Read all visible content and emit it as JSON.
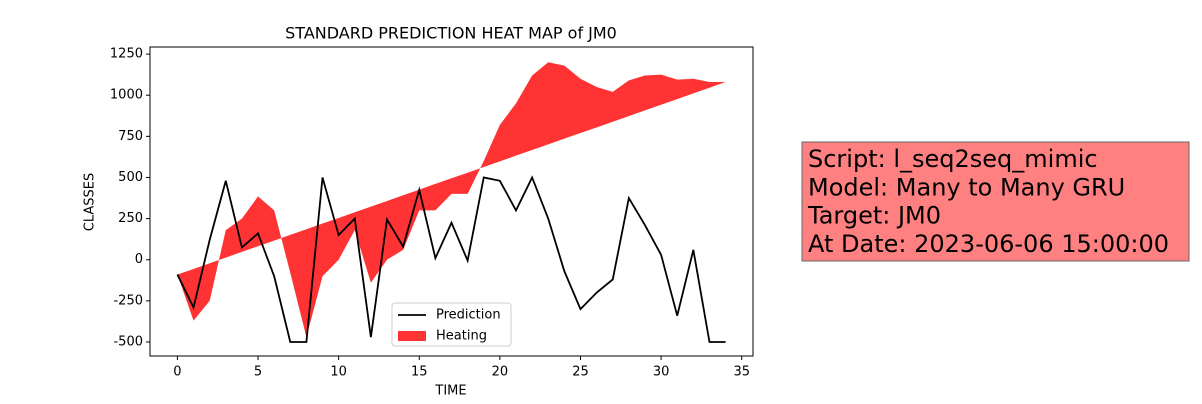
{
  "chart_data": {
    "type": "line",
    "title": "STANDARD PREDICTION HEAT MAP of JM0",
    "x_label": "TIME",
    "y_label": "CLASSES",
    "x": [
      0,
      1,
      2,
      3,
      4,
      5,
      6,
      7,
      8,
      9,
      10,
      11,
      12,
      13,
      14,
      15,
      16,
      17,
      18,
      19,
      20,
      21,
      22,
      23,
      24,
      25,
      26,
      27,
      28,
      29,
      30,
      31,
      32,
      33,
      34
    ],
    "series": [
      {
        "name": "Prediction",
        "color": "#000000",
        "kind": "line",
        "values": [
          -90,
          -290,
          120,
          480,
          75,
          160,
          -100,
          -500,
          -500,
          500,
          150,
          250,
          -470,
          245,
          80,
          425,
          10,
          225,
          -5,
          500,
          480,
          300,
          500,
          250,
          -70,
          -300,
          -200,
          -120,
          375,
          210,
          30,
          -340,
          60,
          -500,
          -500
        ]
      },
      {
        "name": "Heating",
        "color": "#ff0000",
        "kind": "fill_between",
        "values": [
          -90,
          -370,
          -250,
          180,
          250,
          385,
          300,
          -80,
          -470,
          -100,
          0,
          180,
          -140,
          0,
          60,
          300,
          300,
          400,
          400,
          600,
          820,
          950,
          1120,
          1200,
          1180,
          1100,
          1050,
          1020,
          1090,
          1120,
          1125,
          1095,
          1100,
          1080,
          1080
        ],
        "base": [
          -90,
          -56,
          -21,
          13,
          48,
          82,
          116,
          151,
          185,
          220,
          254,
          289,
          323,
          357,
          392,
          426,
          461,
          495,
          529,
          564,
          598,
          633,
          667,
          701,
          736,
          770,
          804,
          839,
          873,
          908,
          942,
          976,
          1011,
          1045,
          1080
        ]
      }
    ],
    "xlim": [
      -1.7,
      35.7
    ],
    "xticks": [
      0,
      5,
      10,
      15,
      20,
      25,
      30,
      35
    ],
    "ylim": [
      -585,
      1293
    ],
    "yticks": [
      -500,
      -250,
      0,
      250,
      500,
      750,
      1000,
      1250
    ],
    "legend": "lower center",
    "annotation": [
      "Script: l_seq2seq_mimic",
      "Model: Many to Many GRU",
      "Target: JM0",
      "At Date: 2023-06-06 15:00:00"
    ]
  }
}
